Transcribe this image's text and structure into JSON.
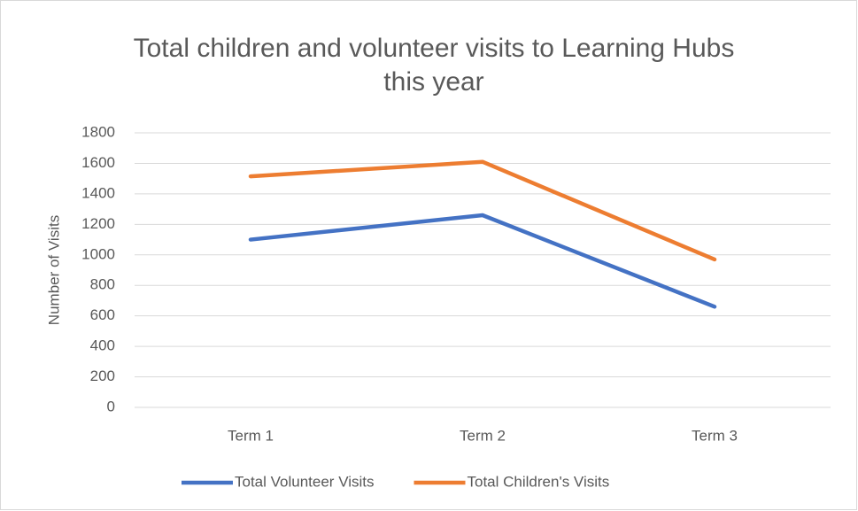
{
  "chart_data": {
    "type": "line",
    "title": "Total children and volunteer visits to Learning Hubs this year",
    "y_label": "Number of Visits",
    "categories": [
      "Term 1",
      "Term 2",
      "Term 3"
    ],
    "series": [
      {
        "name": "Total Volunteer Visits",
        "color": "#4472c4",
        "values": [
          1100,
          1260,
          660
        ]
      },
      {
        "name": "Total Children's Visits",
        "color": "#ed7d31",
        "values": [
          1515,
          1610,
          970
        ]
      }
    ],
    "ylim": [
      0,
      1800
    ],
    "yticks": [
      0,
      200,
      400,
      600,
      800,
      1000,
      1200,
      1400,
      1600,
      1800
    ],
    "grid": true,
    "legend": "bottom"
  }
}
